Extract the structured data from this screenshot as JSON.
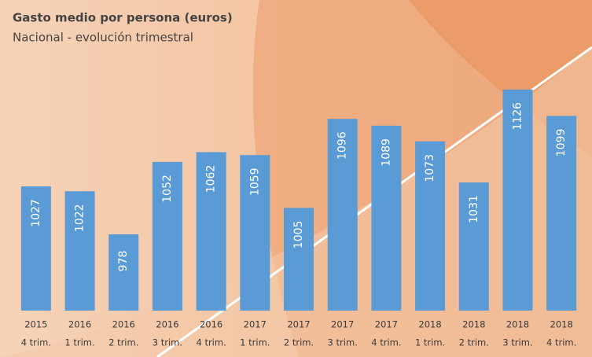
{
  "chart_data": {
    "type": "bar",
    "title": "Gasto medio por persona (euros)",
    "subtitle": "Nacional - evolución trimestral",
    "categories": [
      [
        "2015",
        "4 trim."
      ],
      [
        "2016",
        "1 trim."
      ],
      [
        "2016",
        "2 trim."
      ],
      [
        "2016",
        "3 trim."
      ],
      [
        "2016",
        "4 trim."
      ],
      [
        "2017",
        "1 trim."
      ],
      [
        "2017",
        "2 trim."
      ],
      [
        "2017",
        "3 trim."
      ],
      [
        "2017",
        "4 trim."
      ],
      [
        "2018",
        "1 trim."
      ],
      [
        "2018",
        "2 trim."
      ],
      [
        "2018",
        "3 trim."
      ],
      [
        "2018",
        "4 trim."
      ]
    ],
    "values": [
      1027,
      1022,
      978,
      1052,
      1062,
      1059,
      1005,
      1096,
      1089,
      1073,
      1031,
      1126,
      1099
    ],
    "color": "#5b9bd5",
    "ylim": [
      900,
      1150
    ]
  }
}
